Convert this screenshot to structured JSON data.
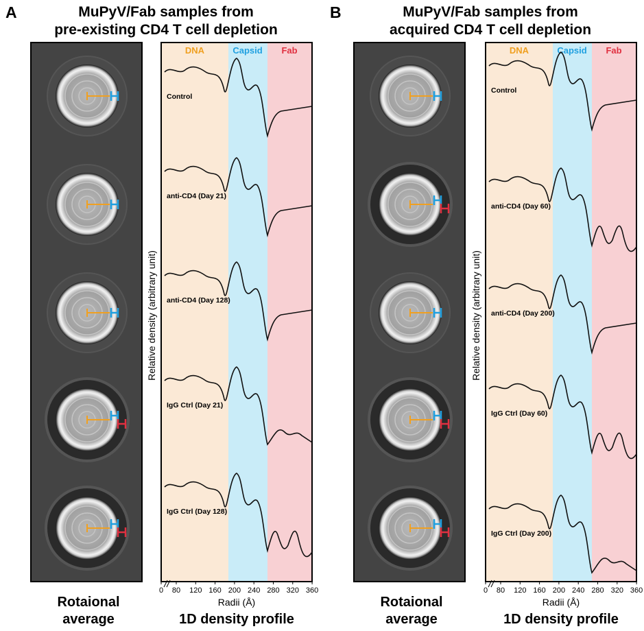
{
  "panels": [
    {
      "label": "A",
      "title": [
        "MuPyV/Fab samples from",
        "pre-existing CD4 T cell depletion"
      ],
      "regions": [
        "DNA",
        "Capsid",
        "Fab"
      ],
      "samples": [
        "Control",
        "anti-CD4 (Day 21)",
        "anti-CD4 (Day 128)",
        "IgG Ctrl (Day 21)",
        "IgG Ctrl (Day 128)"
      ],
      "y_axis_label": "Relative density (arbitrary unit)",
      "x_axis_label": "Radii (Å)",
      "x_ticks": [
        "0",
        "80",
        "120",
        "160",
        "200",
        "240",
        "280",
        "320",
        "360"
      ],
      "image_caption": [
        "Rotaional",
        "average"
      ],
      "profile_caption": "1D density profile"
    },
    {
      "label": "B",
      "title": [
        "MuPyV/Fab samples from",
        "acquired CD4 T cell depletion"
      ],
      "regions": [
        "DNA",
        "Capsid",
        "Fab"
      ],
      "samples": [
        "Control",
        "anti-CD4 (Day 60)",
        "anti-CD4 (Day 200)",
        "IgG Ctrl (Day 60)",
        "IgG Ctrl (Day 200)"
      ],
      "y_axis_label": "Relative density (arbitrary unit)",
      "x_axis_label": "Radii (Å)",
      "x_ticks": [
        "0",
        "80",
        "120",
        "160",
        "200",
        "240",
        "280",
        "320",
        "360"
      ],
      "image_caption": [
        "Rotaional",
        "average"
      ],
      "profile_caption": "1D density profile"
    }
  ]
}
